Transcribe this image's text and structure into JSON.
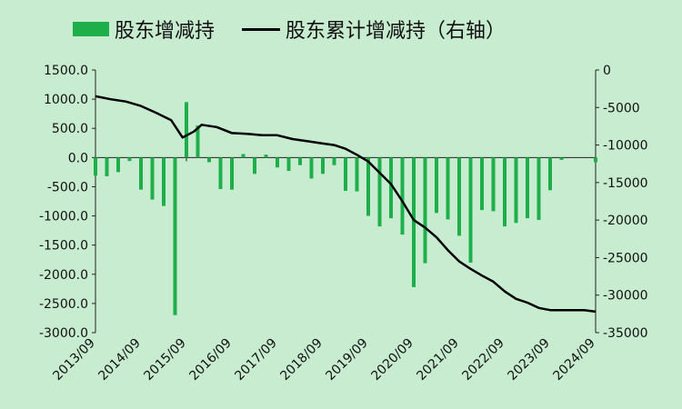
{
  "legend": {
    "bar_label": "股东增减持",
    "line_label": "股东累计增减持（右轴）"
  },
  "colors": {
    "background": "#c8ecd0",
    "bar": "#1faf4a",
    "line": "#000000"
  },
  "chart_data": {
    "type": "bar+line",
    "x_tick_labels": [
      "2013/09",
      "2014/09",
      "2015/09",
      "2016/09",
      "2017/09",
      "2018/09",
      "2019/09",
      "2020/09",
      "2021/09",
      "2022/09",
      "2023/09",
      "2024/09"
    ],
    "left_axis": {
      "ylim": [
        -3000,
        1500
      ],
      "ticks": [
        "1500.0",
        "1000.0",
        "500.0",
        "0.0",
        "-500.0",
        "-1000.0",
        "-1500.0",
        "-2000.0",
        "-2500.0",
        "-3000.0"
      ]
    },
    "right_axis": {
      "ylim": [
        -35000,
        0
      ],
      "ticks": [
        "0",
        "-5000",
        "-10000",
        "-15000",
        "-20000",
        "-25000",
        "-30000",
        "-35000"
      ]
    },
    "series": [
      {
        "name": "股东增减持",
        "type": "bar",
        "axis": "left",
        "values": [
          -310,
          -320,
          -250,
          -60,
          -550,
          -720,
          -830,
          -2700,
          950,
          550,
          -80,
          -540,
          -550,
          60,
          -280,
          50,
          -170,
          -230,
          -130,
          -360,
          -280,
          -130,
          -570,
          -580,
          -1000,
          -1180,
          -1040,
          -1320,
          -2220,
          -1810,
          -950,
          -1060,
          -1340,
          -1800,
          -900,
          -920,
          -1180,
          -1120,
          -1040,
          -1070,
          -560,
          -40,
          -80
        ],
        "months": [
          "2013/09",
          "2013/12",
          "2014/03",
          "2014/06",
          "2014/09",
          "2014/12",
          "2015/03",
          "2015/06",
          "2015/09",
          "2015/12",
          "2016/03",
          "2016/06",
          "2016/09",
          "2016/12",
          "2017/03",
          "2017/06",
          "2017/09",
          "2017/12",
          "2018/03",
          "2018/06",
          "2018/09",
          "2018/12",
          "2019/03",
          "2019/06",
          "2019/09",
          "2019/12",
          "2020/03",
          "2020/06",
          "2020/09",
          "2020/12",
          "2021/03",
          "2021/06",
          "2021/09",
          "2021/12",
          "2022/03",
          "2022/06",
          "2022/09",
          "2022/12",
          "2023/03",
          "2023/06",
          "2023/09",
          "2023/12",
          "2024/09"
        ]
      },
      {
        "name": "股东累计增减持（右轴）",
        "type": "line",
        "axis": "right",
        "x": [
          "2013/09",
          "2014/01",
          "2014/05",
          "2014/09",
          "2015/01",
          "2015/05",
          "2015/08",
          "2015/11",
          "2016/01",
          "2016/05",
          "2016/09",
          "2017/01",
          "2017/05",
          "2017/09",
          "2018/01",
          "2018/05",
          "2018/09",
          "2018/12",
          "2019/03",
          "2019/06",
          "2019/09",
          "2019/12",
          "2020/03",
          "2020/06",
          "2020/09",
          "2020/12",
          "2021/03",
          "2021/06",
          "2021/09",
          "2021/12",
          "2022/03",
          "2022/06",
          "2022/09",
          "2022/12",
          "2023/03",
          "2023/06",
          "2023/09",
          "2023/12",
          "2024/03",
          "2024/06",
          "2024/09"
        ],
        "values": [
          -3500,
          -3900,
          -4200,
          -4800,
          -5700,
          -6700,
          -9000,
          -8200,
          -7300,
          -7600,
          -8400,
          -8500,
          -8700,
          -8700,
          -9200,
          -9500,
          -9800,
          -10000,
          -10500,
          -11300,
          -12200,
          -13700,
          -15200,
          -17500,
          -20000,
          -21000,
          -22300,
          -24000,
          -25500,
          -26500,
          -27400,
          -28200,
          -29500,
          -30500,
          -31000,
          -31700,
          -32000,
          -32000,
          -32000,
          -32000,
          -32200
        ]
      }
    ]
  }
}
